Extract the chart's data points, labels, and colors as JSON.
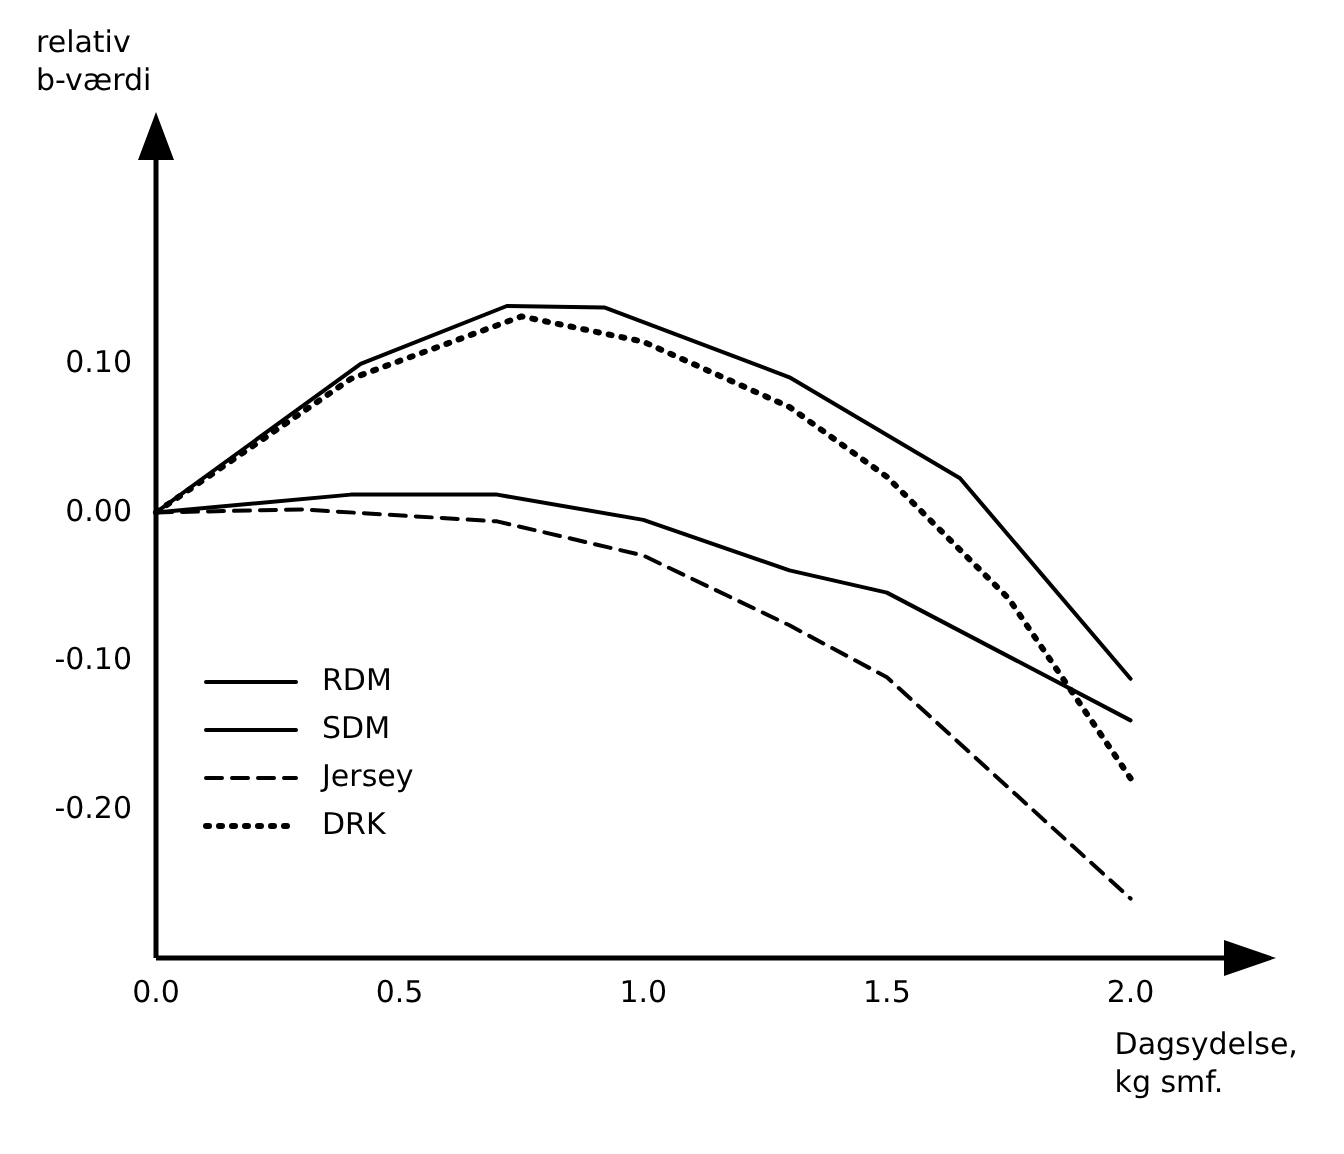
{
  "chart_data": {
    "type": "line",
    "xlabel": "Dagsydelse,\nkg smf.",
    "ylabel": "relativ\nb-værdi",
    "xlim": [
      0,
      2.2
    ],
    "ylim": [
      -0.3,
      0.24
    ],
    "xticks": [
      {
        "value": 0,
        "label": "0.0"
      },
      0.5,
      {
        "value": 1,
        "label": "1.0"
      },
      1.5,
      {
        "value": 2,
        "label": "2.0"
      }
    ],
    "yticks": [
      {
        "value": 0.1,
        "label": "0.10"
      },
      {
        "value": 0,
        "label": "0.00"
      },
      {
        "value": -0.1,
        "label": "-0.10"
      },
      {
        "value": -0.2,
        "label": "-0.20"
      }
    ],
    "grid": false,
    "legend": "bottom left",
    "marker": "none",
    "series": [
      {
        "name": "RDM",
        "color": "#000000",
        "line_style": "solid",
        "x": [
          0,
          0.4,
          0.7,
          1.0,
          1.3,
          1.5,
          2.0
        ],
        "values": [
          0,
          0.012,
          0.012,
          -0.005,
          -0.039,
          -0.054,
          -0.14
        ]
      },
      {
        "name": "SDM",
        "color": "#000000",
        "line_style": "solid",
        "x": [
          0,
          0.42,
          0.72,
          0.92,
          1.3,
          1.65,
          2.0
        ],
        "values": [
          0,
          0.1,
          0.139,
          0.138,
          0.091,
          0.023,
          -0.112
        ]
      },
      {
        "name": "Jersey",
        "color": "#000000",
        "line_style": "dashed",
        "x": [
          0,
          0.3,
          0.7,
          1.0,
          1.3,
          1.5,
          2.0
        ],
        "values": [
          0,
          0.002,
          -0.006,
          -0.029,
          -0.076,
          -0.111,
          -0.26
        ]
      },
      {
        "name": "DRK",
        "color": "#000000",
        "line_style": "dotted",
        "x": [
          0,
          0.4,
          0.75,
          1.0,
          1.3,
          1.5,
          1.75,
          2.0
        ],
        "values": [
          0,
          0.09,
          0.132,
          0.115,
          0.071,
          0.024,
          -0.058,
          -0.179
        ]
      }
    ]
  }
}
